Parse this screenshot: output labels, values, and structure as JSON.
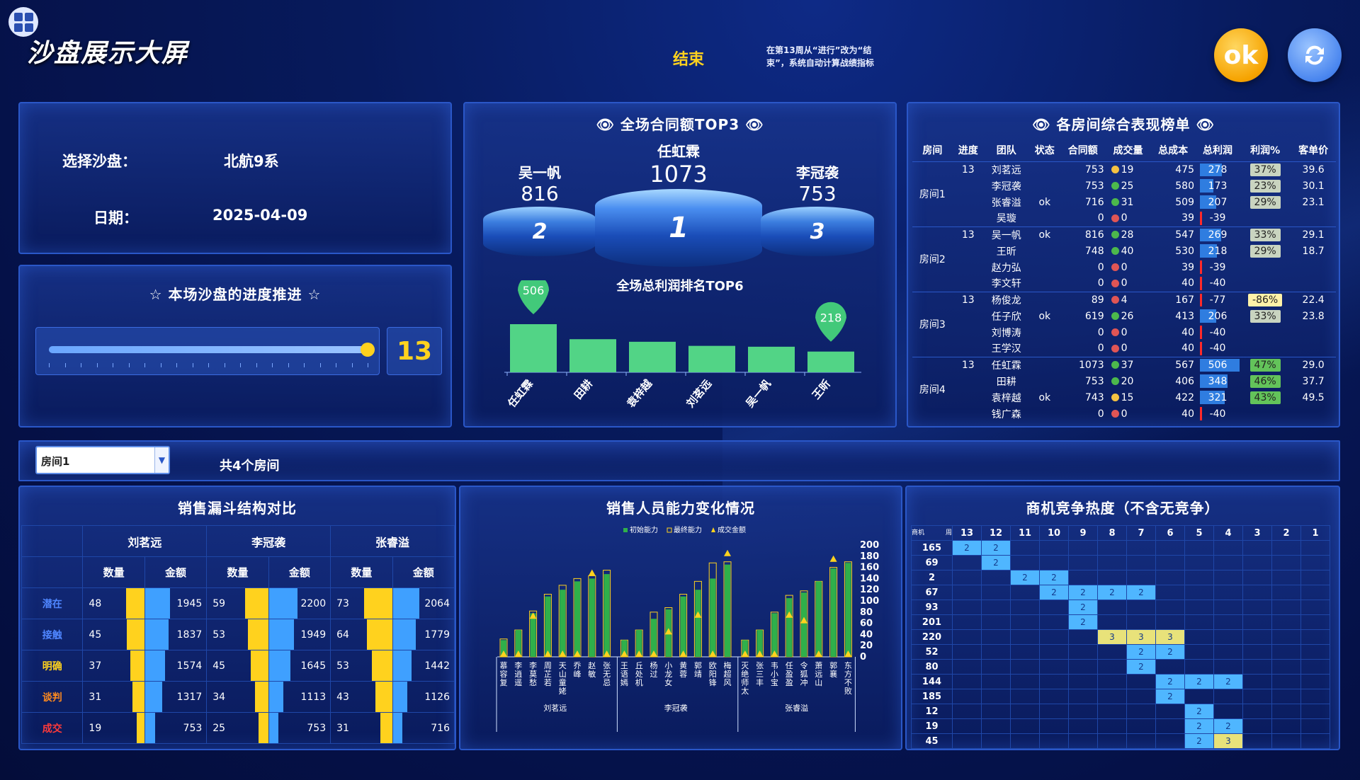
{
  "header": {
    "title": "沙盘展示大屏",
    "status": "结束",
    "note": "在第13周从“进行”改为“结束”，系统自动计算战绩指标",
    "ok_label": "ok"
  },
  "info": {
    "sandbox_label": "选择沙盘：",
    "sandbox_value": "北航9系",
    "date_label": "日期：",
    "date_value": "2025-04-09"
  },
  "progress": {
    "title": "☆ 本场沙盘的进度推进 ☆",
    "value": "13",
    "fraction": 1.0
  },
  "top3": {
    "title": "全场合同额TOP3",
    "first": {
      "name": "任虹霖",
      "value": "1073",
      "rank": "1"
    },
    "second": {
      "name": "吴一帆",
      "value": "816",
      "rank": "2"
    },
    "third": {
      "name": "李冠袭",
      "value": "753",
      "rank": "3"
    }
  },
  "profit": {
    "title": "全场总利润排名TOP6",
    "chart_data": {
      "type": "bar",
      "categories": [
        "任虹霖",
        "田耕",
        "袁梓越",
        "刘茗远",
        "吴一帆",
        "王昕"
      ],
      "values": [
        506,
        348,
        321,
        278,
        269,
        218
      ],
      "labels": [
        "506",
        "",
        "",
        "",
        "",
        "218"
      ]
    }
  },
  "ranking": {
    "title": "各房间综合表现榜单",
    "headers": [
      "房间",
      "进度",
      "团队",
      "状态",
      "合同额",
      "成交量",
      "总成本",
      "总利润",
      "利润%",
      "客单价"
    ],
    "groups": [
      {
        "room": "房间1",
        "progress": "13",
        "rows": [
          {
            "team": "刘茗远",
            "state": "",
            "contract": "753",
            "dot": "#f5c242",
            "deals": "19",
            "cost": "475",
            "profit": "278",
            "bar": 0.55,
            "pct": "37%",
            "pctc": "#c9d4c0",
            "price": "39.6"
          },
          {
            "team": "李冠袭",
            "state": "",
            "contract": "753",
            "dot": "#4cb84c",
            "deals": "25",
            "cost": "580",
            "profit": "173",
            "bar": 0.34,
            "pct": "23%",
            "pctc": "#c9d4c0",
            "price": "30.1"
          },
          {
            "team": "张睿溢",
            "state": "ok",
            "contract": "716",
            "dot": "#4cb84c",
            "deals": "31",
            "cost": "509",
            "profit": "207",
            "bar": 0.41,
            "pct": "29%",
            "pctc": "#c9d4c0",
            "price": "23.1"
          },
          {
            "team": "吴璇",
            "state": "",
            "contract": "0",
            "dot": "#e05555",
            "deals": "0",
            "cost": "39",
            "profit": "-39",
            "bar": -0.08,
            "pct": "",
            "pctc": "",
            "price": ""
          }
        ]
      },
      {
        "room": "房间2",
        "progress": "13",
        "rows": [
          {
            "team": "吴一帆",
            "state": "ok",
            "contract": "816",
            "dot": "#4cb84c",
            "deals": "28",
            "cost": "547",
            "profit": "269",
            "bar": 0.53,
            "pct": "33%",
            "pctc": "#c9d4c0",
            "price": "29.1"
          },
          {
            "team": "王昕",
            "state": "",
            "contract": "748",
            "dot": "#4cb84c",
            "deals": "40",
            "cost": "530",
            "profit": "218",
            "bar": 0.43,
            "pct": "29%",
            "pctc": "#c9d4c0",
            "price": "18.7"
          },
          {
            "team": "赵力弘",
            "state": "",
            "contract": "0",
            "dot": "#e05555",
            "deals": "0",
            "cost": "39",
            "profit": "-39",
            "bar": -0.08,
            "pct": "",
            "pctc": "",
            "price": ""
          },
          {
            "team": "李文轩",
            "state": "",
            "contract": "0",
            "dot": "#e05555",
            "deals": "0",
            "cost": "40",
            "profit": "-40",
            "bar": -0.08,
            "pct": "",
            "pctc": "",
            "price": ""
          }
        ]
      },
      {
        "room": "房间3",
        "progress": "13",
        "rows": [
          {
            "team": "杨俊龙",
            "state": "",
            "contract": "89",
            "dot": "#e05555",
            "deals": "4",
            "cost": "167",
            "profit": "-77",
            "bar": -0.15,
            "pct": "-86%",
            "pctc": "#fff2a8",
            "price": "22.4"
          },
          {
            "team": "任子欣",
            "state": "ok",
            "contract": "619",
            "dot": "#4cb84c",
            "deals": "26",
            "cost": "413",
            "profit": "206",
            "bar": 0.41,
            "pct": "33%",
            "pctc": "#c9d4c0",
            "price": "23.8"
          },
          {
            "team": "刘博涛",
            "state": "",
            "contract": "0",
            "dot": "#e05555",
            "deals": "0",
            "cost": "40",
            "profit": "-40",
            "bar": -0.08,
            "pct": "",
            "pctc": "",
            "price": ""
          },
          {
            "team": "王学汉",
            "state": "",
            "contract": "0",
            "dot": "#e05555",
            "deals": "0",
            "cost": "40",
            "profit": "-40",
            "bar": -0.08,
            "pct": "",
            "pctc": "",
            "price": ""
          }
        ]
      },
      {
        "room": "房间4",
        "progress": "13",
        "rows": [
          {
            "team": "任虹霖",
            "state": "",
            "contract": "1073",
            "dot": "#4cb84c",
            "deals": "37",
            "cost": "567",
            "profit": "506",
            "bar": 1.0,
            "pct": "47%",
            "pctc": "#63c35a",
            "price": "29.0"
          },
          {
            "team": "田耕",
            "state": "",
            "contract": "753",
            "dot": "#4cb84c",
            "deals": "20",
            "cost": "406",
            "profit": "348",
            "bar": 0.69,
            "pct": "46%",
            "pctc": "#63c35a",
            "price": "37.7"
          },
          {
            "team": "袁梓越",
            "state": "ok",
            "contract": "743",
            "dot": "#f5c242",
            "deals": "15",
            "cost": "422",
            "profit": "321",
            "bar": 0.63,
            "pct": "43%",
            "pctc": "#63c35a",
            "price": "49.5"
          },
          {
            "team": "钱广森",
            "state": "",
            "contract": "0",
            "dot": "#e05555",
            "deals": "0",
            "cost": "40",
            "profit": "-40",
            "bar": -0.08,
            "pct": "",
            "pctc": "",
            "price": ""
          }
        ]
      }
    ]
  },
  "room_select": {
    "value": "房间1",
    "count": "共4个房间"
  },
  "funnel": {
    "title": "销售漏斗结构对比",
    "teams": [
      "刘茗远",
      "李冠袭",
      "张睿溢"
    ],
    "sub": [
      "数量",
      "金额"
    ],
    "stages": [
      {
        "name": "潜在",
        "color": "#4f86ff"
      },
      {
        "name": "接触",
        "color": "#4f86ff"
      },
      {
        "name": "明确",
        "color": "#ffd21e"
      },
      {
        "name": "谈判",
        "color": "#ff8a1e"
      },
      {
        "name": "成交",
        "color": "#ff3a3a"
      }
    ],
    "data": [
      [
        [
          "48",
          "1945"
        ],
        [
          "59",
          "2200"
        ],
        [
          "73",
          "2064"
        ]
      ],
      [
        [
          "45",
          "1837"
        ],
        [
          "53",
          "1949"
        ],
        [
          "64",
          "1779"
        ]
      ],
      [
        [
          "37",
          "1574"
        ],
        [
          "45",
          "1645"
        ],
        [
          "53",
          "1442"
        ]
      ],
      [
        [
          "31",
          "1317"
        ],
        [
          "34",
          "1113"
        ],
        [
          "43",
          "1126"
        ]
      ],
      [
        [
          "19",
          "753"
        ],
        [
          "25",
          "753"
        ],
        [
          "31",
          "716"
        ]
      ]
    ]
  },
  "ability": {
    "title": "销售人员能力变化情况",
    "legend": [
      "初始能力",
      "最终能力",
      "成交金额"
    ],
    "chart_data": {
      "type": "bar",
      "yticks": [
        "200",
        "180",
        "160",
        "140",
        "120",
        "100",
        "80",
        "60",
        "40",
        "20",
        "0"
      ],
      "ylim": [
        0,
        200
      ],
      "groups": [
        {
          "name": "刘茗远",
          "members": [
            "慕容复",
            "李逍遥",
            "李莫愁",
            "周芷若",
            "天山童姥",
            "乔峰",
            "赵敏",
            "张无忌"
          ],
          "init": [
            30,
            48,
            78,
            108,
            120,
            135,
            140,
            148
          ],
          "final": [
            32,
            48,
            82,
            112,
            128,
            140,
            145,
            155
          ],
          "deal": [
            0,
            0,
            68,
            0,
            0,
            0,
            145,
            0
          ]
        },
        {
          "name": "李冠袭",
          "members": [
            "王语嫣",
            "丘处机",
            "杨过",
            "小龙女",
            "黄蓉",
            "郭靖",
            "欧阳锋",
            "梅超风"
          ],
          "init": [
            30,
            48,
            68,
            85,
            108,
            120,
            140,
            165
          ],
          "final": [
            30,
            48,
            80,
            88,
            112,
            135,
            168,
            170
          ],
          "deal": [
            0,
            0,
            0,
            40,
            0,
            70,
            0,
            180
          ]
        },
        {
          "name": "张睿溢",
          "members": [
            "灭绝师太",
            "张三丰",
            "韦小宝",
            "任盈盈",
            "令狐冲",
            "萧远山",
            "郭襄",
            "东方不败"
          ],
          "init": [
            30,
            48,
            78,
            105,
            115,
            135,
            158,
            168
          ],
          "final": [
            30,
            48,
            80,
            110,
            118,
            135,
            160,
            170
          ],
          "deal": [
            0,
            0,
            0,
            70,
            60,
            0,
            170,
            0
          ]
        }
      ]
    }
  },
  "heat": {
    "title": "商机竞争热度（不含无竞争）",
    "corner_a": "商机",
    "corner_b": "周",
    "cols": [
      "13",
      "12",
      "11",
      "10",
      "9",
      "8",
      "7",
      "6",
      "5",
      "4",
      "3",
      "2",
      "1"
    ],
    "rows": [
      {
        "id": "165",
        "cells": [
          {
            "c": 0,
            "v": "2"
          },
          {
            "c": 1,
            "v": "2"
          }
        ]
      },
      {
        "id": "69",
        "cells": [
          {
            "c": 1,
            "v": "2"
          }
        ]
      },
      {
        "id": "2",
        "cells": [
          {
            "c": 2,
            "v": "2"
          },
          {
            "c": 3,
            "v": "2"
          }
        ]
      },
      {
        "id": "67",
        "cells": [
          {
            "c": 3,
            "v": "2"
          },
          {
            "c": 4,
            "v": "2"
          },
          {
            "c": 5,
            "v": "2"
          },
          {
            "c": 6,
            "v": "2"
          }
        ]
      },
      {
        "id": "93",
        "cells": [
          {
            "c": 4,
            "v": "2"
          }
        ]
      },
      {
        "id": "201",
        "cells": [
          {
            "c": 4,
            "v": "2"
          }
        ]
      },
      {
        "id": "220",
        "cells": [
          {
            "c": 5,
            "v": "3",
            "y": 1
          },
          {
            "c": 6,
            "v": "3",
            "y": 1
          },
          {
            "c": 7,
            "v": "3",
            "y": 1
          }
        ]
      },
      {
        "id": "52",
        "cells": [
          {
            "c": 6,
            "v": "2"
          },
          {
            "c": 7,
            "v": "2"
          }
        ]
      },
      {
        "id": "80",
        "cells": [
          {
            "c": 6,
            "v": "2"
          }
        ]
      },
      {
        "id": "144",
        "cells": [
          {
            "c": 7,
            "v": "2"
          },
          {
            "c": 8,
            "v": "2"
          },
          {
            "c": 9,
            "v": "2"
          }
        ]
      },
      {
        "id": "185",
        "cells": [
          {
            "c": 7,
            "v": "2"
          }
        ]
      },
      {
        "id": "12",
        "cells": [
          {
            "c": 8,
            "v": "2"
          }
        ]
      },
      {
        "id": "19",
        "cells": [
          {
            "c": 8,
            "v": "2"
          },
          {
            "c": 9,
            "v": "2"
          }
        ]
      },
      {
        "id": "45",
        "cells": [
          {
            "c": 8,
            "v": "2"
          },
          {
            "c": 9,
            "v": "3",
            "y": 1
          }
        ]
      }
    ]
  },
  "colors": {
    "accent": "#ffd21e",
    "panel_border": "#2a57c8",
    "green": "#2fb04a",
    "blue_cell": "#4fb6ff"
  }
}
